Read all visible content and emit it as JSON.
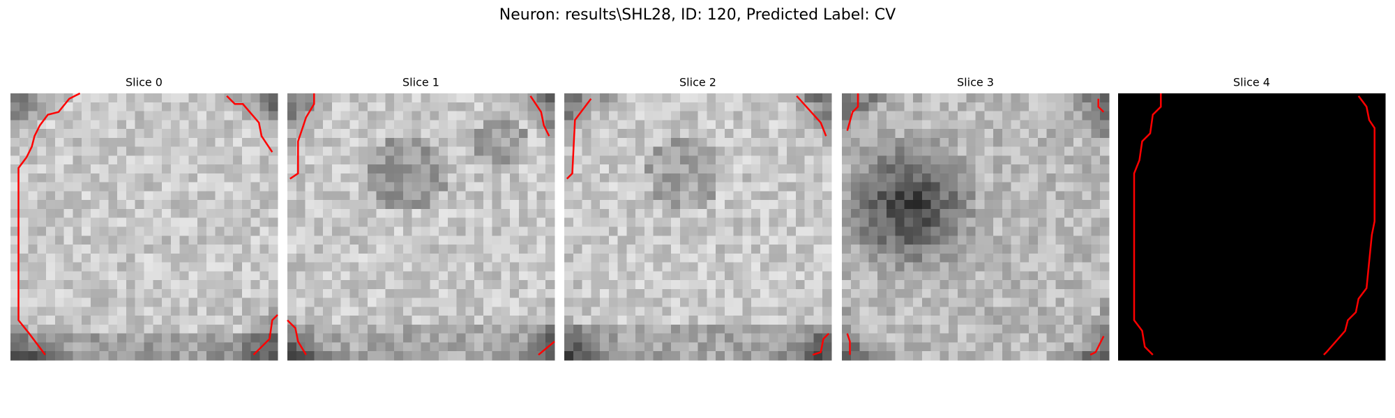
{
  "title": "Neuron: results\\SHL28, ID: 120, Predicted Label: CV",
  "panels": [
    {
      "title": "Slice 0"
    },
    {
      "title": "Slice 1"
    },
    {
      "title": "Slice 2"
    },
    {
      "title": "Slice 3"
    },
    {
      "title": "Slice 4"
    }
  ]
}
